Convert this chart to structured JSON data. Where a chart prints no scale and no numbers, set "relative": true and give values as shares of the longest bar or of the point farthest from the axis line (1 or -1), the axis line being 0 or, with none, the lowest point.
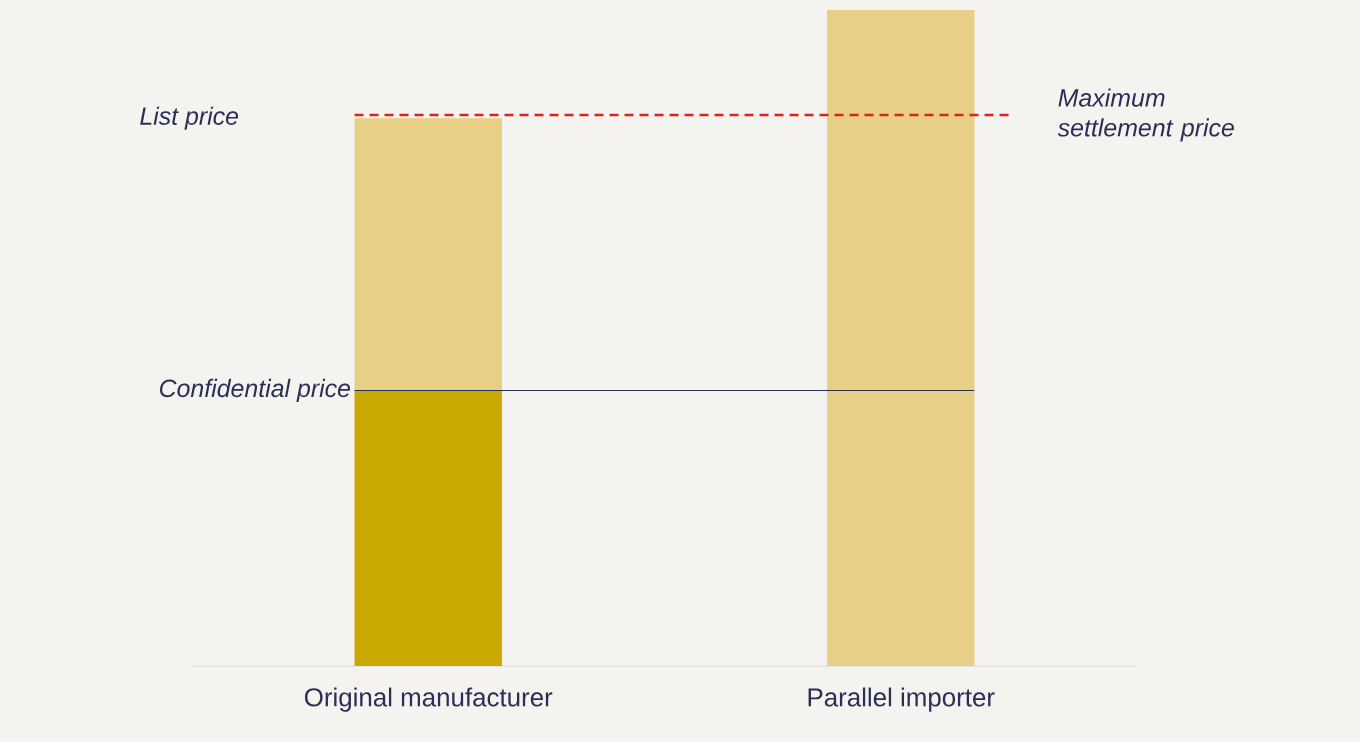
{
  "chart_data": {
    "type": "bar",
    "relative": true,
    "stacked": true,
    "categories": [
      "Original manufacturer",
      "Parallel importer"
    ],
    "series": [
      {
        "color": "#c9a900",
        "values": [
          0.42,
          null
        ]
      },
      {
        "color": "#e8cf86",
        "values": [
          0.415,
          1.0
        ]
      }
    ],
    "ref_lines": [
      {
        "axis": "y",
        "value": 0.42,
        "label": "Confidential price",
        "color": "#2a2f55",
        "line_style": "solid"
      },
      {
        "axis": "y",
        "value": 0.84,
        "label": "Maximum settlement price",
        "color": "#d9261c",
        "line_style": "dashed"
      }
    ],
    "annotations": [
      "List price"
    ]
  }
}
